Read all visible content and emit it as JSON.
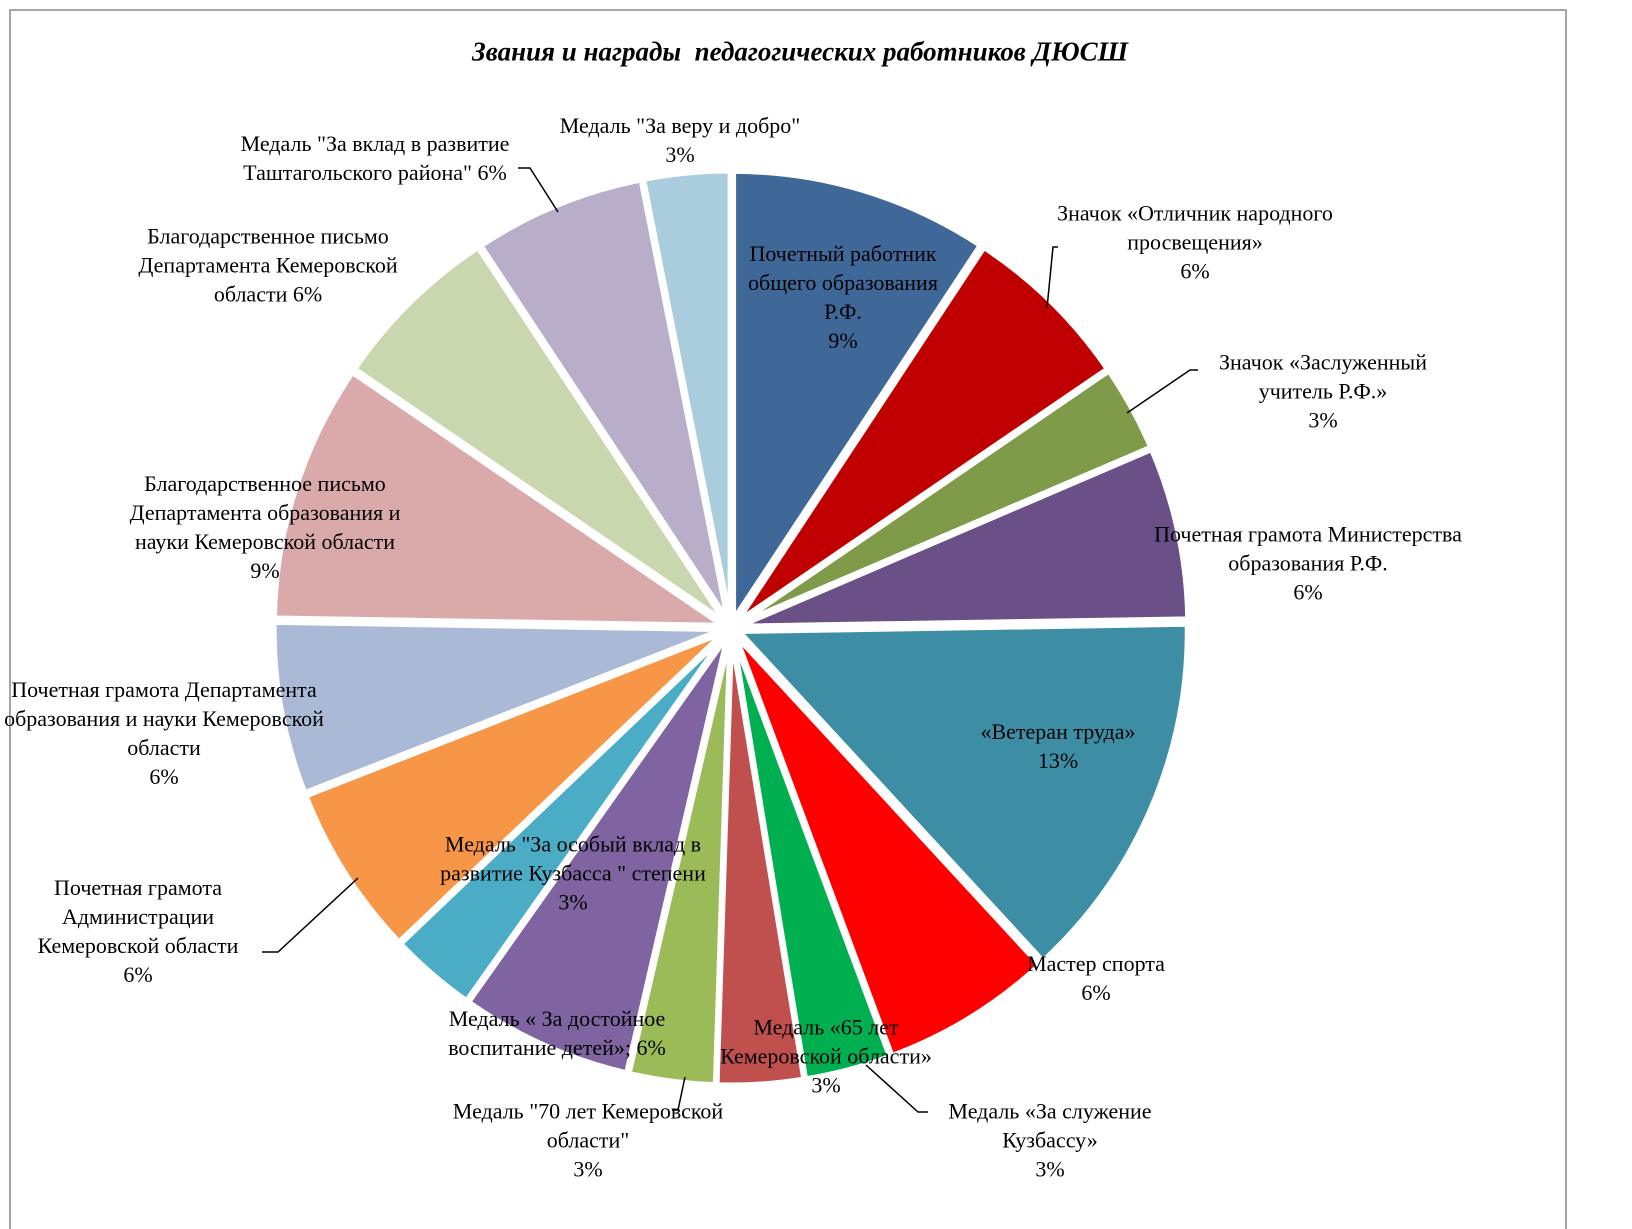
{
  "chart_data": {
    "type": "pie",
    "title": "Звания и награды  педагогических работников ДЮСШ",
    "categories": [
      "Почетный работник общего образования Р.Ф.",
      "Значок «Отличник народного просвещения»",
      "Значок «Заслуженный учитель Р.Ф.»",
      "Почетная грамота Министерства образования Р.Ф.",
      "«Ветеран труда»",
      "Мастер спорта",
      "Медаль «За служение Кузбассу»",
      "Медаль «65 лет Кемеровской области»",
      "Медаль \"70 лет Кемеровской области\"",
      "Медаль « За достойное воспитание детей»;",
      "Медаль \"За особый вклад в развитие Кузбасса \" степени",
      "Почетная грамота Администрации Кемеровской области",
      "Почетная грамота Департамента образования и науки Кемеровской области",
      "Благодарственное письмо Департамента образования и науки Кемеровской области",
      "Благодарственное письмо Департамента Кемеровской области",
      "Медаль \"За вклад  в развитие Таштагольского района\"",
      "Медаль \"За веру и добро\""
    ],
    "values": [
      9,
      6,
      3,
      6,
      13,
      6,
      3,
      3,
      3,
      6,
      3,
      6,
      6,
      9,
      6,
      6,
      3
    ],
    "value_labels": [
      "9%",
      "6%",
      "3%",
      "6%",
      "13%",
      "6%",
      "3%",
      "3%",
      "3%",
      "6%",
      "3%",
      "6%",
      "6%",
      "9%",
      "6%",
      "6%",
      "3%"
    ],
    "colors": [
      "#3f6899",
      "#c00000",
      "#7f9a48",
      "#6a5086",
      "#3d8ea4",
      "#ff0000",
      "#00b050",
      "#c0504d",
      "#9bbb59",
      "#8064a2",
      "#4bacc6",
      "#f79646",
      "#a9b9d6",
      "#d9aaa9",
      "#c8d7ae",
      "#b9aeca",
      "#a9cddd"
    ]
  }
}
